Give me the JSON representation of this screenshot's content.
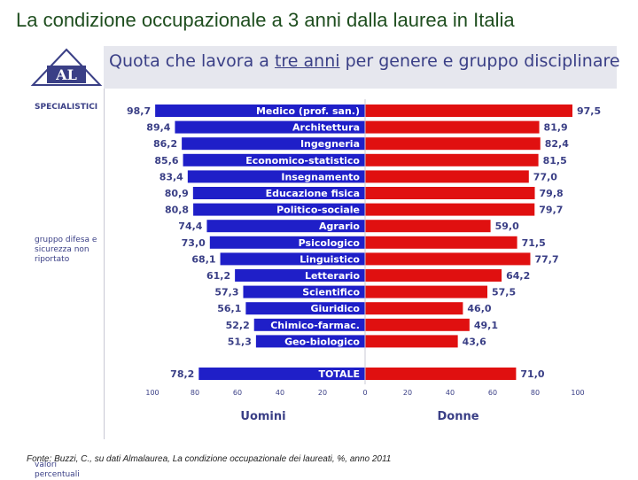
{
  "slide_title": "La condizione occupazionale a 3 anni dalla laurea in Italia",
  "header": {
    "logo_text": "AL",
    "title_before": "Quota che lavora a ",
    "title_underlined": "tre anni",
    "title_after": " per genere e gruppo disciplinare"
  },
  "side": {
    "specialistici": "SPECIALISTICI",
    "nota": "gruppo difesa e sicurezza non riportato",
    "valori": "valori percentuali"
  },
  "colors": {
    "men": "#1f1fc8",
    "women": "#e01010",
    "accent": "#3a3f86"
  },
  "chart_data": {
    "type": "bar",
    "orientation": "horizontal-diverging",
    "categories": [
      "Medico (prof. san.)",
      "Architettura",
      "Ingegneria",
      "Economico-statistico",
      "Insegnamento",
      "Educazione fisica",
      "Politico-sociale",
      "Agrario",
      "Psicologico",
      "Linguistico",
      "Letterario",
      "Scientifico",
      "Giuridico",
      "Chimico-farmac.",
      "Geo-biologico"
    ],
    "series": [
      {
        "name": "Uomini",
        "values": [
          98.7,
          89.4,
          86.2,
          85.6,
          83.4,
          80.9,
          80.8,
          74.4,
          73.0,
          68.1,
          61.2,
          57.3,
          56.1,
          52.2,
          51.3
        ]
      },
      {
        "name": "Donne",
        "values": [
          97.5,
          81.9,
          82.4,
          81.5,
          77.0,
          79.8,
          79.7,
          59.0,
          71.5,
          77.7,
          64.2,
          57.5,
          46.0,
          49.1,
          43.6
        ]
      }
    ],
    "value_labels": {
      "men": [
        "98,7",
        "89,4",
        "86,2",
        "85,6",
        "83,4",
        "80,9",
        "80,8",
        "74,4",
        "73,0",
        "68,1",
        "61,2",
        "57,3",
        "56,1",
        "52,2",
        "51,3"
      ],
      "women": [
        "97,5",
        "81,9",
        "82,4",
        "81,5",
        "77,0",
        "79,8",
        "79,7",
        "59,0",
        "71,5",
        "77,7",
        "64,2",
        "57,5",
        "46,0",
        "49,1",
        "43,6"
      ]
    },
    "total": {
      "label": "TOTALE",
      "men": 78.2,
      "women": 71.0,
      "men_label": "78,2",
      "women_label": "71,0"
    },
    "xlim": [
      0,
      100
    ],
    "ticks_left": [
      "100",
      "80",
      "60",
      "40",
      "20",
      "0"
    ],
    "ticks_right": [
      "20",
      "40",
      "60",
      "80",
      "100"
    ],
    "xlabel_left": "Uomini",
    "xlabel_right": "Donne"
  },
  "source": "Fonte: Buzzi, C., su dati Almalaurea, La condizione occupazionale dei laureati, %, anno 2011"
}
